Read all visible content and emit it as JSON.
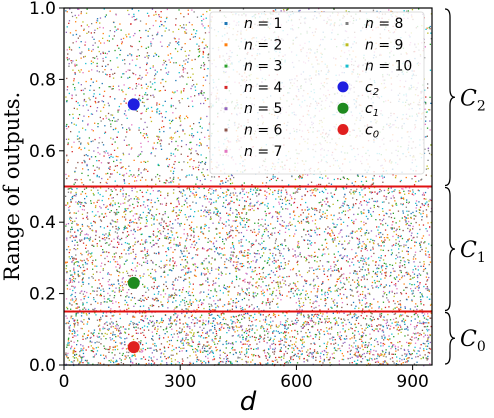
{
  "chart_data": {
    "type": "scatter",
    "xlabel": "d",
    "ylabel": "Range of outputs.",
    "xlim": [
      0,
      950
    ],
    "ylim": [
      0,
      1.0
    ],
    "xticks": [
      "0",
      "300",
      "600",
      "900"
    ],
    "yticks": [
      "0.0",
      "0.2",
      "0.4",
      "0.6",
      "0.8",
      "1.0"
    ],
    "legend_position": "top-right",
    "series": [
      {
        "name": "n = 1",
        "color": "#1f77b4"
      },
      {
        "name": "n = 2",
        "color": "#ff7f0e"
      },
      {
        "name": "n = 3",
        "color": "#2ca02c"
      },
      {
        "name": "n = 4",
        "color": "#d62728"
      },
      {
        "name": "n = 5",
        "color": "#9467bd"
      },
      {
        "name": "n = 6",
        "color": "#8c564b"
      },
      {
        "name": "n = 7",
        "color": "#e377c2"
      },
      {
        "name": "n = 8",
        "color": "#7f7f7f"
      },
      {
        "name": "n = 9",
        "color": "#bcbd22"
      },
      {
        "name": "n = 10",
        "color": "#17becf"
      }
    ],
    "centroids": [
      {
        "name": "c2",
        "x": 180,
        "y": 0.73,
        "color": "#1f1fe0"
      },
      {
        "name": "c1",
        "x": 180,
        "y": 0.23,
        "color": "#1f8a1f"
      },
      {
        "name": "c0",
        "x": 180,
        "y": 0.05,
        "color": "#e01f1f"
      }
    ],
    "thresholds": [
      0.5,
      0.15
    ],
    "threshold_color": "#e01010",
    "classes": [
      {
        "label": "C",
        "sub": "2",
        "range": [
          0.5,
          1.0
        ]
      },
      {
        "label": "C",
        "sub": "1",
        "range": [
          0.15,
          0.5
        ]
      },
      {
        "label": "C",
        "sub": "0",
        "range": [
          0.0,
          0.15
        ]
      }
    ],
    "scatter_density": [
      {
        "range": [
          0.5,
          1.0
        ],
        "relative_density": 0.55
      },
      {
        "range": [
          0.15,
          0.5
        ],
        "relative_density": 1.0
      },
      {
        "range": [
          0.0,
          0.15
        ],
        "relative_density": 1.35
      }
    ]
  }
}
